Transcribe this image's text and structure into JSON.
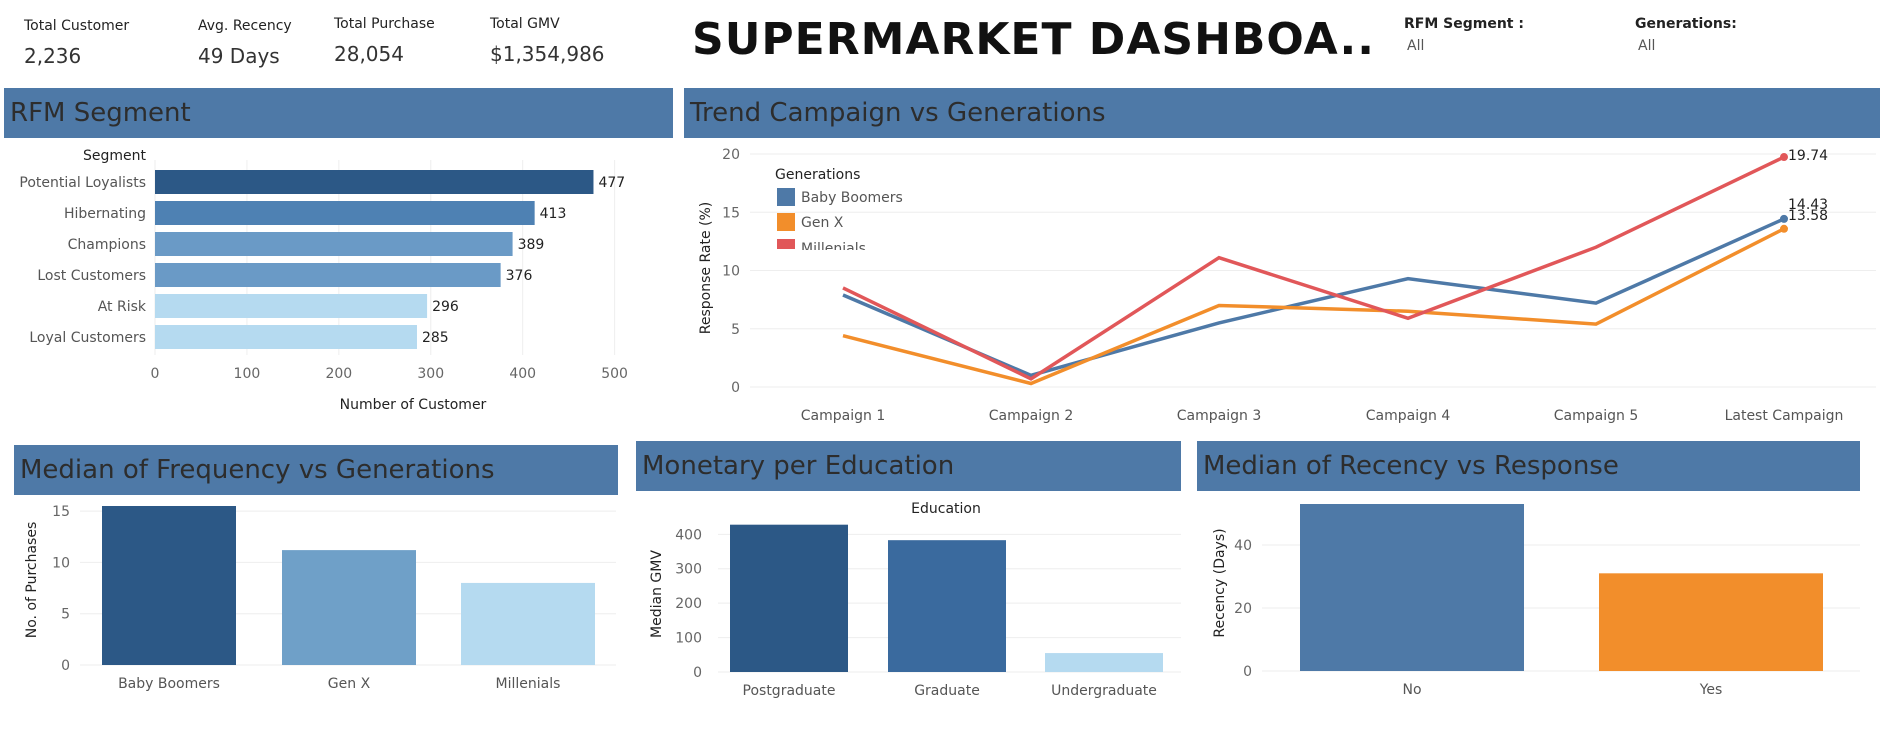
{
  "kpis": [
    {
      "label": "Total Customer",
      "value": "2,236"
    },
    {
      "label": "Avg. Recency",
      "value": "49 Days"
    },
    {
      "label": "Total Purchase",
      "value": "28,054"
    },
    {
      "label": "Total GMV",
      "value": "$1,354,986"
    }
  ],
  "dashboard_title": "SUPERMARKET DASHBOA..",
  "filters": {
    "rfm": {
      "label": "RFM Segment :",
      "value": "All"
    },
    "generations": {
      "label": "Generations:",
      "value": "All"
    }
  },
  "panels": {
    "rfm": "RFM Segment",
    "trend": "Trend Campaign vs Generations",
    "frequency": "Median of Frequency vs Generations",
    "monetary": "Monetary per Education",
    "recency": "Median of Recency vs Response"
  },
  "colors": {
    "header": "#4e79a7",
    "baby_boomers": "#4e79a7",
    "gen_x": "#f28e2b",
    "millenials": "#e15759"
  },
  "chart_data": [
    {
      "type": "bar",
      "orientation": "horizontal",
      "title": "RFM Segment",
      "category_header": "Segment",
      "xlabel": "Number of Customer",
      "categories": [
        "Potential Loyalists",
        "Hibernating",
        "Champions",
        "Lost Customers",
        "At Risk",
        "Loyal Customers"
      ],
      "values": [
        477,
        413,
        389,
        376,
        296,
        285
      ],
      "bar_colors": [
        "#2c5886",
        "#4e81b3",
        "#6a9ac6",
        "#6a9ac6",
        "#b5daf0",
        "#b5daf0"
      ],
      "xlim": [
        0,
        520
      ],
      "xticks": [
        "0",
        "100",
        "200",
        "300",
        "400",
        "500"
      ]
    },
    {
      "type": "line",
      "title": "Trend Campaign vs Generations",
      "ylabel": "Response Rate (%)",
      "legend_title": "Generations",
      "categories": [
        "Campaign 1",
        "Campaign 2",
        "Campaign 3",
        "Campaign 4",
        "Campaign 5",
        "Latest Campaign"
      ],
      "ylim": [
        0,
        20
      ],
      "yticks": [
        "0",
        "5",
        "10",
        "15",
        "20"
      ],
      "series": [
        {
          "name": "Baby Boomers",
          "color": "#4e79a7",
          "values": [
            7.9,
            1.0,
            5.5,
            9.3,
            7.2,
            14.43
          ],
          "end_label": "14.43"
        },
        {
          "name": "Gen X",
          "color": "#f28e2b",
          "values": [
            4.4,
            0.3,
            7.0,
            6.5,
            5.4,
            13.58
          ],
          "end_label": "13.58"
        },
        {
          "name": "Millenials",
          "color": "#e15759",
          "values": [
            8.5,
            0.7,
            11.1,
            5.9,
            12.0,
            19.74
          ],
          "end_label": "19.74"
        }
      ]
    },
    {
      "type": "bar",
      "title": "Median of Frequency vs Generations",
      "ylabel": "No. of Purchases",
      "categories": [
        "Baby Boomers",
        "Gen X",
        "Millenials"
      ],
      "values": [
        15.5,
        11.2,
        8.0
      ],
      "bar_colors": [
        "#2c5886",
        "#6fa0c8",
        "#b5daf0"
      ],
      "ylim": [
        0,
        15.5
      ],
      "yticks": [
        "0",
        "5",
        "10",
        "15"
      ]
    },
    {
      "type": "bar",
      "title": "Monetary per Education",
      "xlabel": "Education",
      "ylabel": "Median GMV",
      "categories": [
        "Postgraduate",
        "Graduate",
        "Undergraduate"
      ],
      "values": [
        428,
        383,
        55
      ],
      "bar_colors": [
        "#2c5886",
        "#3a6a9e",
        "#b5daf0"
      ],
      "ylim": [
        0,
        430
      ],
      "yticks": [
        "0",
        "100",
        "200",
        "300",
        "400"
      ]
    },
    {
      "type": "bar",
      "title": "Median of Recency vs Response",
      "ylabel": "Recency (Days)",
      "categories": [
        "No",
        "Yes"
      ],
      "values": [
        53,
        31
      ],
      "bar_colors": [
        "#4e79a7",
        "#f28e2b"
      ],
      "ylim": [
        0,
        53
      ],
      "yticks": [
        "0",
        "20",
        "40"
      ]
    }
  ]
}
